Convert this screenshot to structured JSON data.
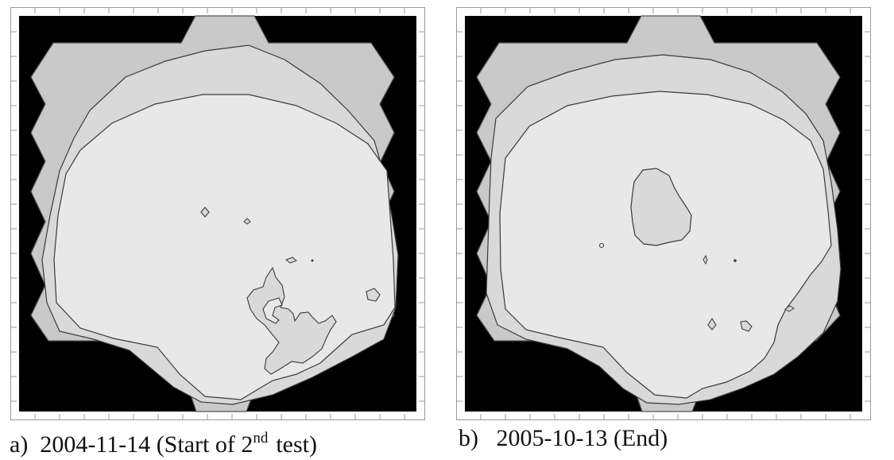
{
  "panels": [
    {
      "id": "a",
      "label": "a)",
      "date": "2004-11-14",
      "caption_pre": "(Start of 2",
      "caption_sup": "nd",
      "caption_post": "test)"
    },
    {
      "id": "b",
      "label": "b)",
      "date": "2005-10-13",
      "caption_text": "(End)"
    }
  ],
  "colors": {
    "background": "#000000",
    "outer_zone": "#c9c9c9",
    "middle_zone": "#d9d9d9",
    "inner_zone": "#e8e8e8",
    "contour_line": "#3a3a3a",
    "frame": "#9a9a9a"
  }
}
